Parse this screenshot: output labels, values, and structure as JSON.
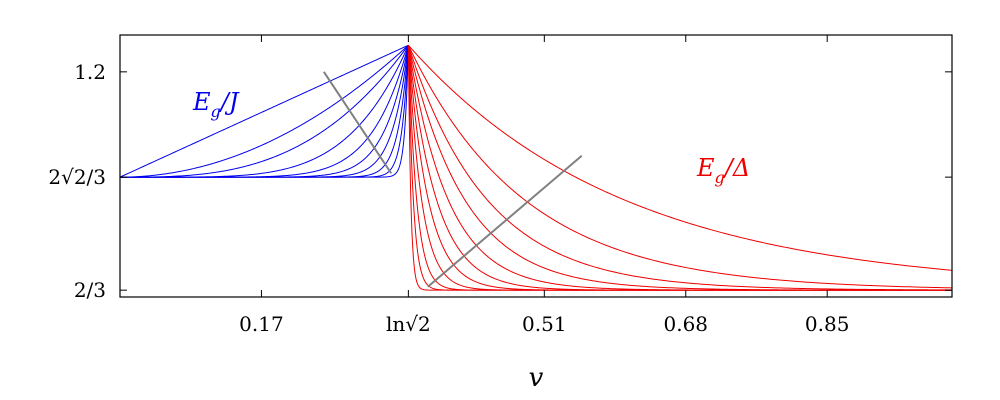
{
  "chart_data": {
    "type": "line",
    "xlabel": "v",
    "ylabel": "",
    "xlim": [
      0.0,
      1.0
    ],
    "ylim": [
      0.65,
      1.29
    ],
    "x_ticks": [
      {
        "value": 0.17,
        "label": "0.17"
      },
      {
        "value": 0.3466,
        "label": "ln√2"
      },
      {
        "value": 0.51,
        "label": "0.51"
      },
      {
        "value": 0.68,
        "label": "0.68"
      },
      {
        "value": 0.85,
        "label": "0.85"
      }
    ],
    "y_ticks": [
      {
        "value": 1.2,
        "label": "1.2"
      },
      {
        "value": 0.9428,
        "label": "2√2/3"
      },
      {
        "value": 0.6667,
        "label": "2/3"
      }
    ],
    "grid": false,
    "peak": {
      "x": 0.3466,
      "y": 1.265
    },
    "series": [
      {
        "label_main": "E",
        "label_sub": "g",
        "label_rest": "/J",
        "color": "#0000ee",
        "x_range": [
          0.0,
          0.3466
        ],
        "start_value": 0.9428,
        "end_value": 1.265,
        "sharpness": [
          1,
          2,
          3,
          5,
          8,
          12,
          18,
          28,
          45,
          80
        ]
      },
      {
        "label_main": "E",
        "label_sub": "g",
        "label_rest": "/Δ",
        "color": "#ee0000",
        "x_range": [
          0.3466,
          1.0
        ],
        "start_value": 1.265,
        "end_value": 0.6667,
        "decay_lengths": [
          0.26,
          0.14,
          0.095,
          0.068,
          0.048,
          0.034,
          0.024,
          0.016,
          0.01,
          0.006,
          0.003
        ]
      }
    ],
    "annotation_lines": [
      {
        "color": "#808080",
        "from": [
          0.245,
          1.2
        ],
        "to": [
          0.326,
          0.952
        ]
      },
      {
        "color": "#808080",
        "from": [
          0.37,
          0.675
        ],
        "to": [
          0.555,
          0.995
        ]
      }
    ]
  }
}
